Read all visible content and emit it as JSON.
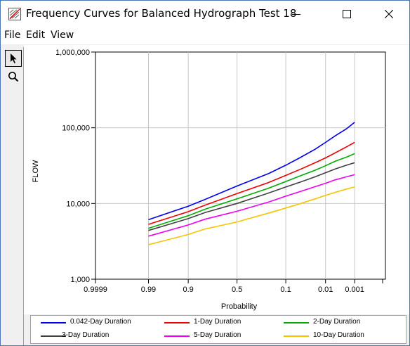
{
  "window": {
    "title": "Frequency Curves for Balanced Hydrograph Test 18"
  },
  "menu": {
    "file": "File",
    "edit": "Edit",
    "view": "View"
  },
  "toolbar": {
    "tools": [
      "pointer-icon",
      "zoom-icon"
    ]
  },
  "chart_data": {
    "type": "line",
    "title": "",
    "xlabel": "Probability",
    "ylabel": "FLOW",
    "x_scale": "probability",
    "y_scale": "log",
    "ylim": [
      1000,
      1000000
    ],
    "x_tick_labels": [
      "0.9999",
      "0.99",
      "0.9",
      "0.5",
      "0.1",
      "0.01",
      "0.001"
    ],
    "y_tick_labels": [
      "1,000",
      "10,000",
      "100,000",
      "1,000,000"
    ],
    "grid": true,
    "legend_position": "bottom",
    "x": [
      0.99,
      0.9,
      0.8,
      0.5,
      0.2,
      0.1,
      0.05,
      0.02,
      0.01,
      0.005,
      0.002,
      0.001
    ],
    "series": [
      {
        "name": "0.042-Day Duration",
        "color": "#0000ee",
        "values": [
          6100,
          9200,
          11300,
          17000,
          25000,
          32000,
          40000,
          52000,
          64000,
          78000,
          97000,
          118000
        ]
      },
      {
        "name": "1-Day Duration",
        "color": "#ee0000",
        "values": [
          5300,
          7800,
          9500,
          13500,
          19000,
          23500,
          28000,
          34500,
          40000,
          46500,
          56000,
          64000
        ]
      },
      {
        "name": "2-Day Duration",
        "color": "#00aa00",
        "values": [
          4700,
          6900,
          8400,
          11500,
          16000,
          19500,
          23000,
          27500,
          31500,
          36000,
          41000,
          45500
        ]
      },
      {
        "name": "3-Day Duration",
        "color": "#404040",
        "values": [
          4400,
          6300,
          7600,
          10000,
          13800,
          16500,
          19000,
          22500,
          25500,
          28500,
          32000,
          34500
        ]
      },
      {
        "name": "5-Day Duration",
        "color": "#ee00ee",
        "values": [
          3700,
          5200,
          6200,
          7900,
          10500,
          12500,
          14300,
          16700,
          18500,
          20500,
          22500,
          24000
        ]
      },
      {
        "name": "10-Day Duration",
        "color": "#f5c400",
        "values": [
          2850,
          3900,
          4600,
          5700,
          7500,
          8700,
          9900,
          11500,
          12800,
          14000,
          15500,
          16500
        ]
      }
    ]
  }
}
